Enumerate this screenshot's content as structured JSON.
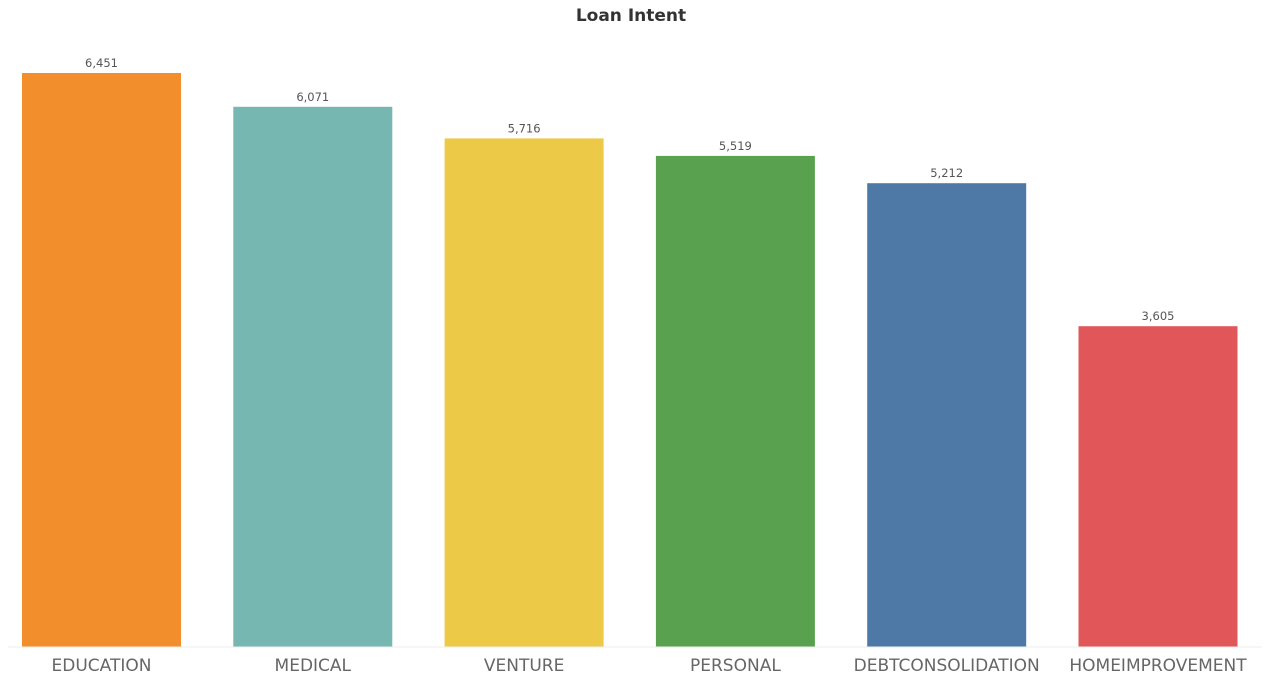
{
  "chart_data": {
    "type": "bar",
    "title": "Loan Intent",
    "xlabel": "",
    "ylabel": "",
    "categories": [
      "EDUCATION",
      "MEDICAL",
      "VENTURE",
      "PERSONAL",
      "DEBTCONSOLIDATION",
      "HOMEIMPROVEMENT"
    ],
    "values": [
      6451,
      6071,
      5716,
      5519,
      5212,
      3605
    ],
    "value_labels": [
      "6,451",
      "6,071",
      "5,716",
      "5,519",
      "5,212",
      "3,605"
    ],
    "colors": [
      "#f28e2b",
      "#76b7b2",
      "#edc948",
      "#59a14f",
      "#4e79a7",
      "#e15759"
    ],
    "ylim": [
      0,
      6451
    ],
    "grid": false,
    "legend": "none"
  }
}
